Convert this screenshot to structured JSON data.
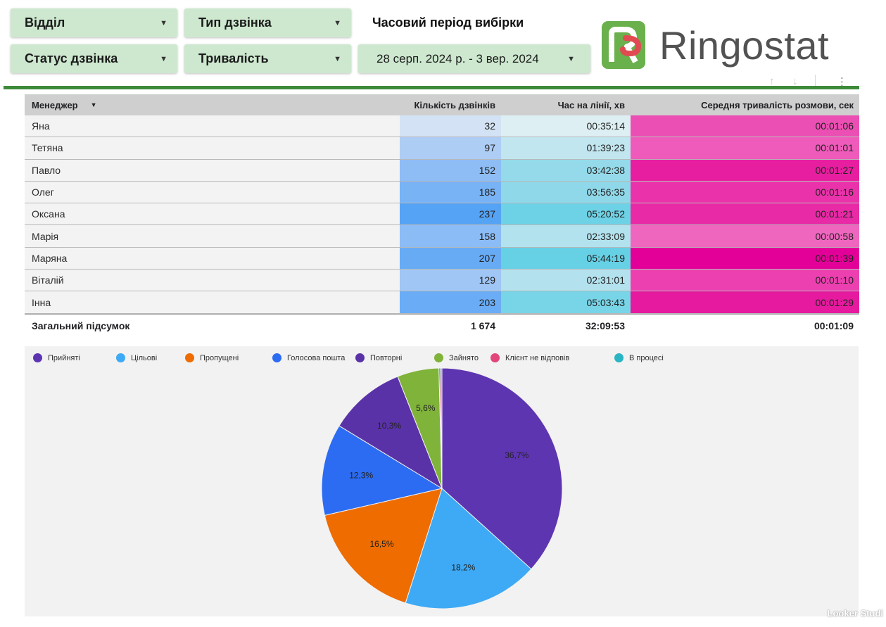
{
  "filters": {
    "department": "Відділ",
    "call_type": "Тип дзвінка",
    "call_status": "Статус дзвінка",
    "duration": "Тривалість",
    "period_title": "Часовий період вибірки",
    "date_range": "28 серп. 2024 р. - 3 вер. 2024"
  },
  "logo": {
    "text": "Ringostat",
    "mark_colors": [
      "#6ab04c",
      "#e24a52"
    ]
  },
  "icons": [
    "sort-up-icon",
    "sort-down-icon",
    "more-vert-icon",
    "dropdown-caret-icon"
  ],
  "table": {
    "headers": {
      "manager": "Менеджер",
      "calls": "Кількість дзвінків",
      "time_on_line": "Час на лінії, хв",
      "avg_talk": "Середня тривалість розмови, сек"
    },
    "rows": [
      {
        "manager": "Яна",
        "calls": "32",
        "time_on_line": "00:35:14",
        "avg_talk": "00:01:06",
        "calls_color": "#d3e3f5",
        "time_color": "#ddeff3",
        "avg_color": "#ec4fb4"
      },
      {
        "manager": "Тетяна",
        "calls": "97",
        "time_on_line": "01:39:23",
        "avg_talk": "00:01:01",
        "calls_color": "#aecdf5",
        "time_color": "#c2e6ef",
        "avg_color": "#ee5bba"
      },
      {
        "manager": "Павло",
        "calls": "152",
        "time_on_line": "03:42:38",
        "avg_talk": "00:01:27",
        "calls_color": "#8ebdf5",
        "time_color": "#95daea",
        "avg_color": "#e71ea0"
      },
      {
        "manager": "Олег",
        "calls": "185",
        "time_on_line": "03:56:35",
        "avg_talk": "00:01:16",
        "calls_color": "#78b3f5",
        "time_color": "#8fd8e9",
        "avg_color": "#ea33aa"
      },
      {
        "manager": "Оксана",
        "calls": "237",
        "time_on_line": "05:20:52",
        "avg_talk": "00:01:21",
        "calls_color": "#55a3f5",
        "time_color": "#6ed2e6",
        "avg_color": "#e82aa6"
      },
      {
        "manager": "Марія",
        "calls": "158",
        "time_on_line": "02:33:09",
        "avg_talk": "00:00:58",
        "calls_color": "#8bbcf5",
        "time_color": "#b2e2ee",
        "avg_color": "#ef66bf"
      },
      {
        "manager": "Маряна",
        "calls": "207",
        "time_on_line": "05:44:19",
        "avg_talk": "00:01:39",
        "calls_color": "#67abf5",
        "time_color": "#66d0e5",
        "avg_color": "#e30098"
      },
      {
        "manager": "Віталій",
        "calls": "129",
        "time_on_line": "02:31:01",
        "avg_talk": "00:01:10",
        "calls_color": "#9fc6f5",
        "time_color": "#b3e2ee",
        "avg_color": "#ec40b0"
      },
      {
        "manager": "Інна",
        "calls": "203",
        "time_on_line": "05:03:43",
        "avg_talk": "00:01:29",
        "calls_color": "#6aacf5",
        "time_color": "#78d4e7",
        "avg_color": "#e61a9f"
      }
    ],
    "total": {
      "label": "Загальний підсумок",
      "calls": "1 674",
      "time_on_line": "32:09:53",
      "avg_talk": "00:01:09"
    }
  },
  "chart_data": {
    "type": "pie",
    "legend_position": "top",
    "slices": [
      {
        "name": "Прийняті",
        "value": 36.7,
        "label": "36,7%",
        "color": "#5e35b1"
      },
      {
        "name": "Цільові",
        "value": 18.2,
        "label": "18,2%",
        "color": "#3eaaf5"
      },
      {
        "name": "Пропущені",
        "value": 16.5,
        "label": "16,5%",
        "color": "#ee6c00"
      },
      {
        "name": "Голосова пошта",
        "value": 12.3,
        "label": "12,3%",
        "color": "#2c6cf2"
      },
      {
        "name": "Повторні",
        "value": 10.3,
        "label": "10,3%",
        "color": "#5a32a8"
      },
      {
        "name": "Зайнято",
        "value": 5.6,
        "label": "5,6%",
        "color": "#80b33a"
      },
      {
        "name": "Клієнт не відповів",
        "value": 0.2,
        "label": "",
        "color": "#e2457a"
      },
      {
        "name": "В процесі",
        "value": 0.2,
        "label": "",
        "color": "#2ab5c4"
      }
    ]
  },
  "watermark": "Looker Studi"
}
